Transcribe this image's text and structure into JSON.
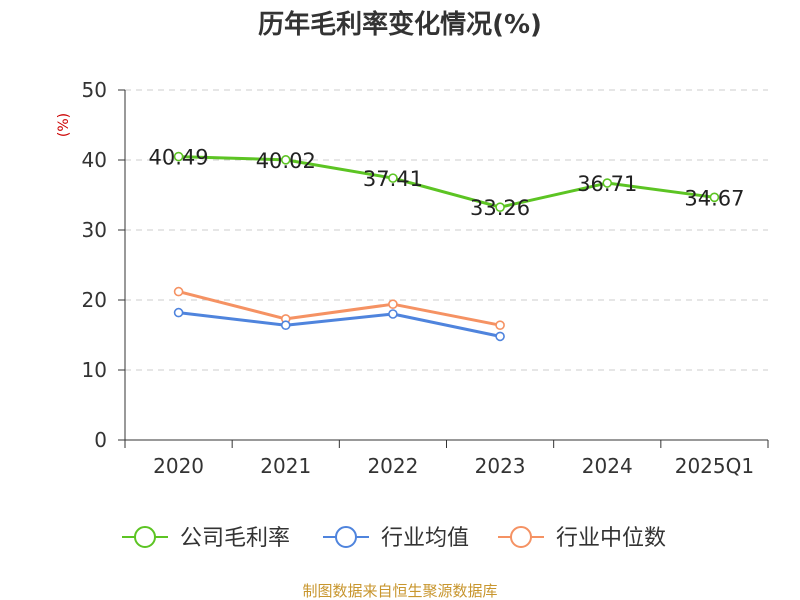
{
  "chart_data": {
    "type": "line",
    "title": "历年毛利率变化情况(%)",
    "ylabel": "(%)",
    "xlabel": "",
    "categories": [
      "2020",
      "2021",
      "2022",
      "2023",
      "2024",
      "2025Q1"
    ],
    "ylim": [
      0,
      50
    ],
    "yticks": [
      0,
      10,
      20,
      30,
      40,
      50
    ],
    "grid": true,
    "legend_position": "bottom",
    "series": [
      {
        "name": "公司毛利率",
        "color": "#5cc423",
        "values": [
          40.49,
          40.02,
          37.41,
          33.26,
          36.71,
          34.67
        ],
        "labels": [
          "40.49",
          "40.02",
          "37.41",
          "33.26",
          "36.71",
          "34.67"
        ]
      },
      {
        "name": "行业均值",
        "color": "#4f84dd",
        "values": [
          18.2,
          16.4,
          18.0,
          14.8,
          null,
          null
        ],
        "labels": []
      },
      {
        "name": "行业中位数",
        "color": "#f59263",
        "values": [
          21.2,
          17.3,
          19.4,
          16.4,
          null,
          null
        ],
        "labels": []
      }
    ]
  },
  "source": "制图数据来自恒生聚源数据库"
}
